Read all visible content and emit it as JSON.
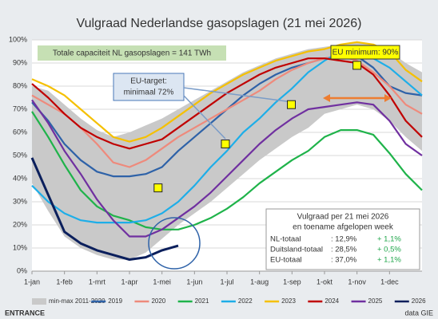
{
  "chart_data": {
    "type": "line",
    "title": "Vulgraad Nederlandse gasopslagen (21 mei 2026)",
    "capacity_note": "Totale capaciteit NL gasopslagen = 141 TWh",
    "x": [
      0,
      0.5,
      1,
      1.5,
      2,
      2.5,
      3,
      3.5,
      4,
      4.5,
      5,
      5.5,
      6,
      6.5,
      7,
      7.5,
      8,
      8.5,
      9,
      9.5,
      10,
      10.5,
      11,
      11.5,
      12
    ],
    "xlim": [
      0,
      12
    ],
    "xticks": [
      {
        "value": 0,
        "label": "1-jan"
      },
      {
        "value": 1,
        "label": "1-feb"
      },
      {
        "value": 2,
        "label": "1-mrt"
      },
      {
        "value": 3,
        "label": "1-apr"
      },
      {
        "value": 4,
        "label": "1-mei"
      },
      {
        "value": 5,
        "label": "1-jun"
      },
      {
        "value": 6,
        "label": "1-jul"
      },
      {
        "value": 7,
        "label": "1-aug"
      },
      {
        "value": 8,
        "label": "1-sep"
      },
      {
        "value": 9,
        "label": "1-okt"
      },
      {
        "value": 10,
        "label": "1-nov"
      },
      {
        "value": 11,
        "label": "1-dec"
      }
    ],
    "ylim": [
      0,
      100
    ],
    "yticks": [
      {
        "value": 0,
        "label": "0%"
      },
      {
        "value": 10,
        "label": "10%"
      },
      {
        "value": 20,
        "label": "20%"
      },
      {
        "value": 30,
        "label": "30%"
      },
      {
        "value": 40,
        "label": "40%"
      },
      {
        "value": 50,
        "label": "50%"
      },
      {
        "value": 60,
        "label": "60%"
      },
      {
        "value": 70,
        "label": "70%"
      },
      {
        "value": 80,
        "label": "80%"
      },
      {
        "value": 90,
        "label": "90%"
      },
      {
        "value": 100,
        "label": "100%"
      }
    ],
    "grid": true,
    "band": {
      "name": "min-max 2011-2020",
      "color": "#c9c9c9",
      "high": [
        80,
        78,
        72,
        66,
        61,
        58,
        60,
        63,
        66,
        70,
        74,
        78,
        82,
        86,
        89,
        92,
        94,
        96,
        97,
        98,
        99,
        98,
        95,
        90,
        86
      ],
      "low": [
        38,
        26,
        15,
        10,
        7,
        5,
        5,
        8,
        14,
        20,
        25,
        30,
        36,
        42,
        48,
        53,
        58,
        62,
        68,
        70,
        72,
        70,
        65,
        58,
        52
      ]
    },
    "series": [
      {
        "name": "2019",
        "color": "#2e62a8",
        "values": [
          73,
          65,
          55,
          48,
          43,
          41,
          41,
          42,
          45,
          52,
          58,
          64,
          70,
          76,
          81,
          85,
          88,
          90,
          92,
          93,
          93,
          88,
          80,
          77,
          76
        ]
      },
      {
        "name": "2020",
        "color": "#ee8a7c",
        "values": [
          76,
          72,
          68,
          62,
          55,
          47,
          45,
          48,
          53,
          58,
          62,
          66,
          70,
          74,
          78,
          83,
          87,
          90,
          92,
          93,
          91,
          86,
          80,
          72,
          68
        ]
      },
      {
        "name": "2021",
        "color": "#1fb34a",
        "values": [
          69,
          58,
          46,
          35,
          28,
          24,
          22,
          19,
          18,
          18,
          20,
          23,
          27,
          32,
          38,
          43,
          48,
          52,
          58,
          61,
          61,
          59,
          51,
          42,
          35
        ]
      },
      {
        "name": "2022",
        "color": "#1eaee8",
        "values": [
          37,
          30,
          25,
          22,
          21,
          21,
          21,
          22,
          25,
          30,
          37,
          45,
          52,
          60,
          66,
          73,
          79,
          86,
          91,
          95,
          94,
          92,
          88,
          82,
          76
        ]
      },
      {
        "name": "2023",
        "color": "#f5c000",
        "values": [
          83,
          80,
          76,
          70,
          64,
          58,
          56,
          58,
          62,
          67,
          72,
          77,
          81,
          85,
          88,
          91,
          93,
          95,
          96,
          98,
          99,
          98,
          95,
          87,
          82
        ]
      },
      {
        "name": "2024",
        "color": "#c00000",
        "values": [
          81,
          75,
          68,
          62,
          58,
          55,
          53,
          55,
          57,
          62,
          67,
          72,
          77,
          81,
          85,
          88,
          90,
          92,
          92,
          91,
          90,
          85,
          76,
          65,
          58
        ]
      },
      {
        "name": "2025",
        "color": "#7030a0",
        "values": [
          74,
          64,
          52,
          42,
          31,
          22,
          15,
          15,
          18,
          23,
          28,
          34,
          41,
          48,
          55,
          61,
          66,
          70,
          71,
          72,
          73,
          72,
          65,
          55,
          50
        ]
      },
      {
        "name": "2026",
        "color": "#0b1f5c",
        "values": [
          49,
          33,
          17,
          12,
          9,
          7,
          5,
          6,
          9,
          11,
          null,
          null,
          null,
          null,
          null,
          null,
          null,
          null,
          null,
          null,
          null,
          null,
          null,
          null,
          null
        ]
      }
    ],
    "targets": {
      "color": "#ffff00",
      "x": [
        3.88,
        5.95,
        7.98,
        10
      ],
      "values": [
        36,
        55,
        72,
        89
      ]
    },
    "eu_target": [
      "EU-target:",
      "minimaal 72%"
    ],
    "eu_minimum": "EU minimum: 90%",
    "table": {
      "title": [
        "Vulgraad per 21 mei 2026",
        "en toename afgelopen week"
      ],
      "rows": [
        [
          "NL-totaal",
          ": 12,9%",
          "+ 1,1%"
        ],
        [
          "Duitsland-totaal",
          ": 28,5%",
          "+ 0,5%"
        ],
        [
          "EU-totaal",
          ": 37,0%",
          "+ 1,1%"
        ]
      ]
    },
    "logo": "ENTRANCE",
    "source": "data GIE"
  }
}
